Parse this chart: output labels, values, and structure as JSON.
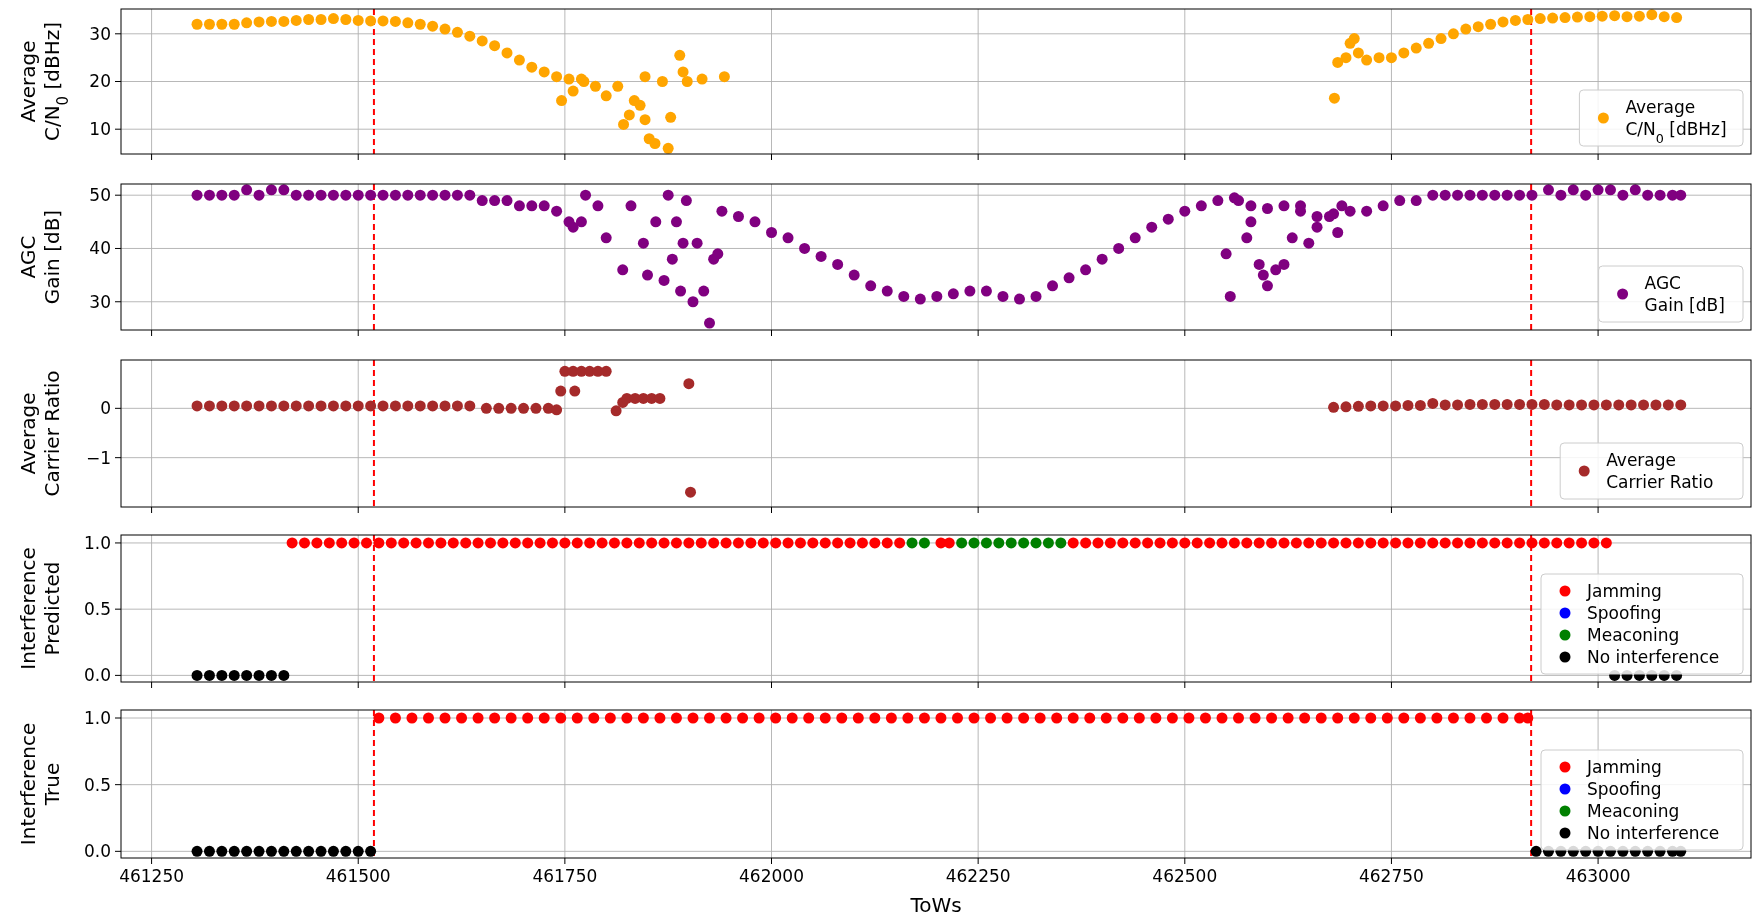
{
  "chart_data": [
    {
      "type": "scatter",
      "ylabel": "Average\nC/N$_{0}$ [dBHz]",
      "xlim": [
        461213,
        463185
      ],
      "ylim": [
        4.8,
        35.2
      ],
      "xticks": [
        461250,
        461500,
        461750,
        462000,
        462250,
        462500,
        462750,
        463000
      ],
      "yticks": [
        10,
        20,
        30
      ],
      "tick_labels": "y",
      "grid": true,
      "legend": "bottom right",
      "marker": "circle",
      "ref_lines": [
        {
          "axis": "x",
          "value": 461519,
          "color": "#ff0000",
          "line_style": "dashed"
        },
        {
          "axis": "x",
          "value": 462919,
          "color": "#ff0000",
          "line_style": "dashed"
        }
      ],
      "series": [
        {
          "name": "Average\nC/N$_{0}$ [dBHz]",
          "color": "#ffa500",
          "x": [
            461305,
            461320,
            461335,
            461350,
            461365,
            461380,
            461395,
            461410,
            461425,
            461440,
            461455,
            461470,
            461485,
            461500,
            461515,
            461530,
            461545,
            461560,
            461575,
            461590,
            461605,
            461620,
            461635,
            461650,
            461665,
            461680,
            461695,
            461710,
            461725,
            461740,
            461755,
            461770,
            461746,
            461760,
            461773,
            461787,
            461800,
            461814,
            461821,
            461828,
            461834,
            461841,
            461847,
            461847,
            461852,
            461859,
            461868,
            461875,
            461878,
            461889,
            461893,
            461898,
            461916,
            461943,
            462681,
            462685,
            462695,
            462700,
            462705,
            462710,
            462720,
            462735,
            462750,
            462765,
            462780,
            462795,
            462810,
            462825,
            462840,
            462855,
            462870,
            462885,
            462900,
            462915,
            462930,
            462945,
            462960,
            462975,
            462990,
            463005,
            463020,
            463035,
            463050,
            463065,
            463080,
            463095
          ],
          "values": [
            32,
            32,
            32,
            32,
            32.3,
            32.5,
            32.6,
            32.6,
            32.8,
            33,
            33,
            33.2,
            33,
            32.8,
            32.7,
            32.7,
            32.6,
            32.3,
            32,
            31.6,
            31,
            30.3,
            29.5,
            28.5,
            27.5,
            26,
            24.5,
            23,
            22,
            21,
            20.5,
            20.5,
            16,
            18,
            20,
            19,
            17,
            19,
            11,
            13,
            16,
            15,
            12,
            21,
            8,
            7,
            20,
            6,
            12.5,
            25.5,
            22,
            20,
            20.5,
            21,
            16.5,
            24,
            25,
            28,
            29,
            26,
            24.5,
            25,
            25,
            26,
            27,
            28,
            29,
            30,
            31,
            31.5,
            32,
            32.5,
            32.8,
            33,
            33.2,
            33.3,
            33.4,
            33.5,
            33.6,
            33.7,
            33.8,
            33.6,
            33.7,
            34,
            33.6,
            33.4
          ]
        }
      ]
    },
    {
      "type": "scatter",
      "ylabel": "AGC\nGain [dB]",
      "xlim": [
        461213,
        463185
      ],
      "ylim": [
        24.7,
        52.1
      ],
      "xticks": [
        461250,
        461500,
        461750,
        462000,
        462250,
        462500,
        462750,
        463000
      ],
      "yticks": [
        30,
        40,
        50
      ],
      "tick_labels": "y",
      "grid": true,
      "legend": "bottom right",
      "marker": "circle",
      "ref_lines": [
        {
          "axis": "x",
          "value": 461519,
          "color": "#ff0000",
          "line_style": "dashed"
        },
        {
          "axis": "x",
          "value": 462919,
          "color": "#ff0000",
          "line_style": "dashed"
        }
      ],
      "series": [
        {
          "name": "AGC\nGain [dB]",
          "color": "#800080",
          "x": [
            461305,
            461320,
            461335,
            461350,
            461365,
            461380,
            461395,
            461410,
            461425,
            461440,
            461455,
            461470,
            461485,
            461500,
            461515,
            461530,
            461545,
            461560,
            461575,
            461590,
            461605,
            461620,
            461635,
            461650,
            461665,
            461680,
            461695,
            461710,
            461725,
            461740,
            461755,
            461770,
            461760,
            461775,
            461790,
            461800,
            461820,
            461830,
            461845,
            461850,
            461860,
            461870,
            461875,
            461880,
            461885,
            461890,
            461893,
            461897,
            461905,
            461910,
            461918,
            461925,
            461930,
            461935,
            461940,
            461960,
            461980,
            462000,
            462020,
            462040,
            462060,
            462080,
            462100,
            462120,
            462140,
            462160,
            462180,
            462200,
            462220,
            462240,
            462260,
            462280,
            462300,
            462320,
            462340,
            462360,
            462380,
            462400,
            462420,
            462440,
            462460,
            462480,
            462500,
            462520,
            462540,
            462560,
            462580,
            462600,
            462620,
            462640,
            462660,
            462680,
            462700,
            462720,
            462740,
            462760,
            462780,
            462550,
            462555,
            462565,
            462575,
            462580,
            462590,
            462595,
            462600,
            462610,
            462620,
            462630,
            462640,
            462650,
            462660,
            462675,
            462685,
            462690,
            462800,
            462815,
            462830,
            462845,
            462860,
            462875,
            462890,
            462905,
            462920,
            462940,
            462955,
            462970,
            462985,
            463000,
            463015,
            463030,
            463045,
            463060,
            463075,
            463090,
            463100
          ],
          "values": [
            50,
            50,
            50,
            50,
            51,
            50,
            51,
            51,
            50,
            50,
            50,
            50,
            50,
            50,
            50,
            50,
            50,
            50,
            50,
            50,
            50,
            50,
            50,
            49,
            49,
            49,
            48,
            48,
            48,
            47,
            45,
            45,
            44,
            50,
            48,
            42,
            36,
            48,
            41,
            35,
            45,
            34,
            50,
            38,
            45,
            32,
            41,
            49,
            30,
            41,
            32,
            26,
            38,
            39,
            47,
            46,
            45,
            43,
            42,
            40,
            38.5,
            37,
            35,
            33,
            32,
            31,
            30.5,
            31,
            31.5,
            32,
            32,
            31,
            30.5,
            31,
            33,
            34.5,
            36,
            38,
            40,
            42,
            44,
            45.5,
            47,
            48,
            49,
            49.5,
            48,
            47.5,
            48,
            47,
            46,
            46.5,
            47,
            47,
            48,
            49,
            49,
            39,
            31,
            49,
            42,
            45,
            37,
            35,
            33,
            36,
            37,
            42,
            48,
            41,
            44,
            46,
            43,
            48,
            50,
            50,
            50,
            50,
            50,
            50,
            50,
            50,
            50,
            51,
            50,
            51,
            50,
            51,
            51,
            50,
            51,
            50,
            50,
            50,
            50
          ]
        }
      ]
    },
    {
      "type": "scatter",
      "ylabel": "Average\nCarrier Ratio",
      "xlim": [
        461213,
        463185
      ],
      "ylim": [
        -2.0,
        0.98
      ],
      "xticks": [
        461250,
        461500,
        461750,
        462000,
        462250,
        462500,
        462750,
        463000
      ],
      "yticks": [
        {
          "value": -1,
          "label": "−1"
        },
        0
      ],
      "tick_labels": "y",
      "grid": true,
      "legend": "bottom right",
      "marker": "circle",
      "ref_lines": [
        {
          "axis": "x",
          "value": 461519,
          "color": "#ff0000",
          "line_style": "dashed"
        },
        {
          "axis": "x",
          "value": 462919,
          "color": "#ff0000",
          "line_style": "dashed"
        }
      ],
      "series": [
        {
          "name": "Average\nCarrier Ratio",
          "color": "#a52a2a",
          "x": [
            461305,
            461320,
            461335,
            461350,
            461365,
            461380,
            461395,
            461410,
            461425,
            461440,
            461455,
            461470,
            461485,
            461500,
            461515,
            461530,
            461545,
            461560,
            461575,
            461590,
            461605,
            461620,
            461635,
            461655,
            461670,
            461685,
            461700,
            461715,
            461730,
            461740,
            461745,
            461750,
            461760,
            461770,
            461780,
            461790,
            461800,
            461762,
            461812,
            461820,
            461825,
            461835,
            461845,
            461855,
            461865,
            461900,
            461902,
            462680,
            462695,
            462710,
            462725,
            462740,
            462755,
            462770,
            462785,
            462800,
            462815,
            462830,
            462845,
            462860,
            462875,
            462890,
            462905,
            462920,
            462935,
            462950,
            462965,
            462980,
            462995,
            463010,
            463025,
            463040,
            463055,
            463070,
            463085,
            463100
          ],
          "values": [
            0.05,
            0.05,
            0.05,
            0.05,
            0.05,
            0.05,
            0.05,
            0.05,
            0.05,
            0.05,
            0.05,
            0.05,
            0.05,
            0.05,
            0.05,
            0.05,
            0.05,
            0.05,
            0.05,
            0.05,
            0.05,
            0.05,
            0.05,
            0,
            0,
            0,
            0,
            0,
            0,
            -0.03,
            0.35,
            0.75,
            0.75,
            0.75,
            0.75,
            0.75,
            0.75,
            0.35,
            -0.05,
            0.12,
            0.2,
            0.2,
            0.2,
            0.2,
            0.2,
            0.5,
            -1.7,
            0.02,
            0.03,
            0.04,
            0.05,
            0.05,
            0.05,
            0.06,
            0.06,
            0.1,
            0.07,
            0.07,
            0.08,
            0.08,
            0.08,
            0.08,
            0.08,
            0.08,
            0.08,
            0.07,
            0.07,
            0.07,
            0.07,
            0.07,
            0.07,
            0.07,
            0.07,
            0.07,
            0.07,
            0.07
          ]
        }
      ]
    },
    {
      "type": "scatter",
      "ylabel": "Interference\nPredicted",
      "xlim": [
        461213,
        463185
      ],
      "ylim": [
        -0.05,
        1.06
      ],
      "xticks": [
        461250,
        461500,
        461750,
        462000,
        462250,
        462500,
        462750,
        463000
      ],
      "yticks": [
        {
          "value": 0,
          "label": "0.0"
        },
        {
          "value": 0.5,
          "label": "0.5"
        },
        {
          "value": 1,
          "label": "1.0"
        }
      ],
      "tick_labels": "y",
      "grid": true,
      "legend": "bottom right",
      "marker": "circle",
      "ref_lines": [
        {
          "axis": "x",
          "value": 461519,
          "color": "#ff0000",
          "line_style": "dashed"
        },
        {
          "axis": "x",
          "value": 462919,
          "color": "#ff0000",
          "line_style": "dashed"
        }
      ],
      "series": [
        {
          "name": "Jamming",
          "color": "#ff0000",
          "x": [
            461420,
            461435,
            461450,
            461465,
            461480,
            461495,
            461510,
            461525,
            461540,
            461555,
            461570,
            461585,
            461600,
            461615,
            461630,
            461645,
            461660,
            461675,
            461690,
            461705,
            461720,
            461735,
            461750,
            461765,
            461780,
            461795,
            461810,
            461825,
            461840,
            461855,
            461870,
            461885,
            461900,
            461915,
            461930,
            461945,
            461960,
            461975,
            461990,
            462005,
            462020,
            462035,
            462050,
            462065,
            462080,
            462095,
            462110,
            462125,
            462140,
            462155,
            462205,
            462215,
            462365,
            462380,
            462395,
            462410,
            462425,
            462440,
            462455,
            462470,
            462485,
            462500,
            462515,
            462530,
            462545,
            462560,
            462575,
            462590,
            462605,
            462620,
            462635,
            462650,
            462665,
            462680,
            462695,
            462710,
            462725,
            462740,
            462755,
            462770,
            462785,
            462800,
            462815,
            462830,
            462845,
            462860,
            462875,
            462890,
            462905,
            462920,
            462935,
            462950,
            462965,
            462980,
            462995,
            463010
          ],
          "values": [
            1,
            1,
            1,
            1,
            1,
            1,
            1,
            1,
            1,
            1,
            1,
            1,
            1,
            1,
            1,
            1,
            1,
            1,
            1,
            1,
            1,
            1,
            1,
            1,
            1,
            1,
            1,
            1,
            1,
            1,
            1,
            1,
            1,
            1,
            1,
            1,
            1,
            1,
            1,
            1,
            1,
            1,
            1,
            1,
            1,
            1,
            1,
            1,
            1,
            1,
            1,
            1,
            1,
            1,
            1,
            1,
            1,
            1,
            1,
            1,
            1,
            1,
            1,
            1,
            1,
            1,
            1,
            1,
            1,
            1,
            1,
            1,
            1,
            1,
            1,
            1,
            1,
            1,
            1,
            1,
            1,
            1,
            1,
            1,
            1,
            1,
            1,
            1,
            1,
            1,
            1,
            1,
            1,
            1,
            1,
            1
          ]
        },
        {
          "name": "Spoofing",
          "color": "#0000ff"
        },
        {
          "name": "Meaconing",
          "color": "#008000",
          "x": [
            462170,
            462185,
            462230,
            462245,
            462260,
            462275,
            462290,
            462305,
            462320,
            462335,
            462350
          ],
          "values": [
            1,
            1,
            1,
            1,
            1,
            1,
            1,
            1,
            1,
            1,
            1
          ]
        },
        {
          "name": "No interference",
          "color": "#000000",
          "x": [
            461305,
            461320,
            461335,
            461350,
            461365,
            461380,
            461395,
            461410,
            463020,
            463035,
            463050,
            463065,
            463080,
            463095
          ],
          "values": [
            0,
            0,
            0,
            0,
            0,
            0,
            0,
            0,
            0,
            0,
            0,
            0,
            0,
            0
          ]
        }
      ]
    },
    {
      "type": "scatter",
      "ylabel": "Interference\nTrue",
      "xlabel": "ToWs",
      "xlim": [
        461213,
        463185
      ],
      "ylim": [
        -0.05,
        1.06
      ],
      "xticks": [
        461250,
        461500,
        461750,
        462000,
        462250,
        462500,
        462750,
        463000
      ],
      "yticks": [
        {
          "value": 0,
          "label": "0.0"
        },
        {
          "value": 0.5,
          "label": "0.5"
        },
        {
          "value": 1,
          "label": "1.0"
        }
      ],
      "grid": true,
      "legend": "bottom right",
      "marker": "circle",
      "ref_lines": [
        {
          "axis": "x",
          "value": 461519,
          "color": "#ff0000",
          "line_style": "dashed"
        },
        {
          "axis": "x",
          "value": 462919,
          "color": "#ff0000",
          "line_style": "dashed"
        }
      ],
      "series": [
        {
          "name": "Jamming",
          "color": "#ff0000",
          "x": [
            461525,
            461545,
            461565,
            461585,
            461605,
            461625,
            461645,
            461665,
            461685,
            461705,
            461725,
            461745,
            461765,
            461785,
            461805,
            461825,
            461845,
            461865,
            461885,
            461905,
            461925,
            461945,
            461965,
            461985,
            462005,
            462025,
            462045,
            462065,
            462085,
            462105,
            462125,
            462145,
            462165,
            462185,
            462205,
            462225,
            462245,
            462265,
            462285,
            462305,
            462325,
            462345,
            462365,
            462385,
            462405,
            462425,
            462445,
            462465,
            462485,
            462505,
            462525,
            462545,
            462565,
            462585,
            462605,
            462625,
            462645,
            462665,
            462685,
            462705,
            462725,
            462745,
            462765,
            462785,
            462805,
            462825,
            462845,
            462865,
            462885,
            462905,
            462915
          ],
          "values": [
            1,
            1,
            1,
            1,
            1,
            1,
            1,
            1,
            1,
            1,
            1,
            1,
            1,
            1,
            1,
            1,
            1,
            1,
            1,
            1,
            1,
            1,
            1,
            1,
            1,
            1,
            1,
            1,
            1,
            1,
            1,
            1,
            1,
            1,
            1,
            1,
            1,
            1,
            1,
            1,
            1,
            1,
            1,
            1,
            1,
            1,
            1,
            1,
            1,
            1,
            1,
            1,
            1,
            1,
            1,
            1,
            1,
            1,
            1,
            1,
            1,
            1,
            1,
            1,
            1,
            1,
            1,
            1,
            1,
            1,
            1
          ]
        },
        {
          "name": "Spoofing",
          "color": "#0000ff"
        },
        {
          "name": "Meaconing",
          "color": "#008000"
        },
        {
          "name": "No interference",
          "color": "#000000",
          "x": [
            461305,
            461320,
            461335,
            461350,
            461365,
            461380,
            461395,
            461410,
            461425,
            461440,
            461455,
            461470,
            461485,
            461500,
            461515,
            462925,
            462940,
            462955,
            462970,
            462985,
            463000,
            463015,
            463030,
            463045,
            463060,
            463075,
            463090,
            463100
          ],
          "values": [
            0,
            0,
            0,
            0,
            0,
            0,
            0,
            0,
            0,
            0,
            0,
            0,
            0,
            0,
            0,
            0,
            0,
            0,
            0,
            0,
            0,
            0,
            0,
            0,
            0,
            0,
            0,
            0
          ]
        }
      ]
    }
  ]
}
